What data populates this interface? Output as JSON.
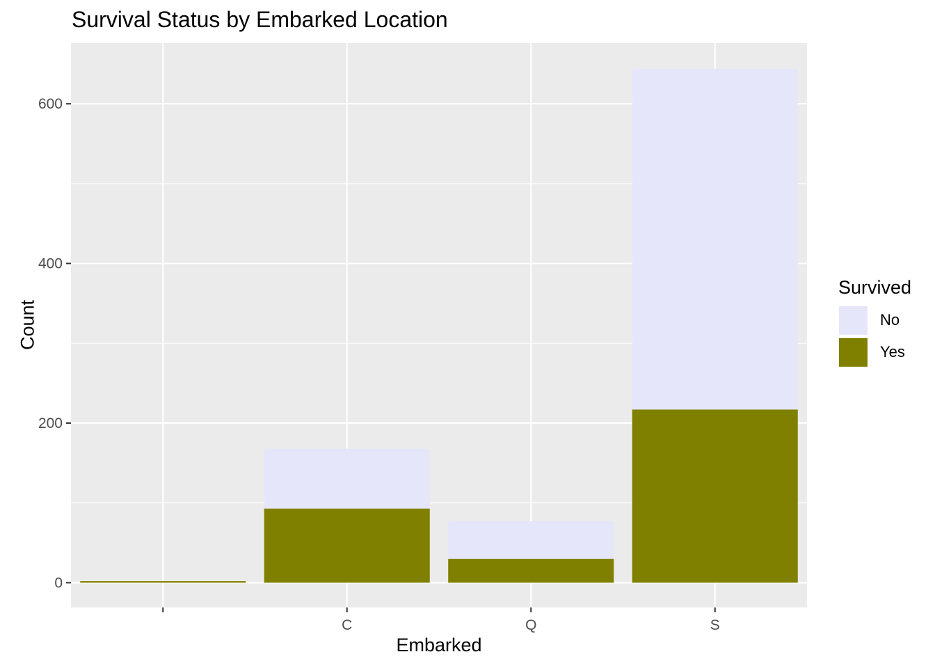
{
  "chart_data": {
    "type": "bar",
    "stacked": true,
    "title": "Survival Status by Embarked Location",
    "xlabel": "Embarked",
    "ylabel": "Count",
    "categories": [
      "",
      "C",
      "Q",
      "S"
    ],
    "series": [
      {
        "name": "No",
        "color": "#E6E6FA",
        "values": [
          0,
          75,
          47,
          427
        ]
      },
      {
        "name": "Yes",
        "color": "#808000",
        "values": [
          2,
          93,
          30,
          217
        ]
      }
    ],
    "ylim": [
      -31,
      676
    ],
    "yticks": [
      0,
      200,
      400,
      600
    ],
    "grid": true,
    "legend": {
      "title": "Survived",
      "position": "right"
    }
  }
}
